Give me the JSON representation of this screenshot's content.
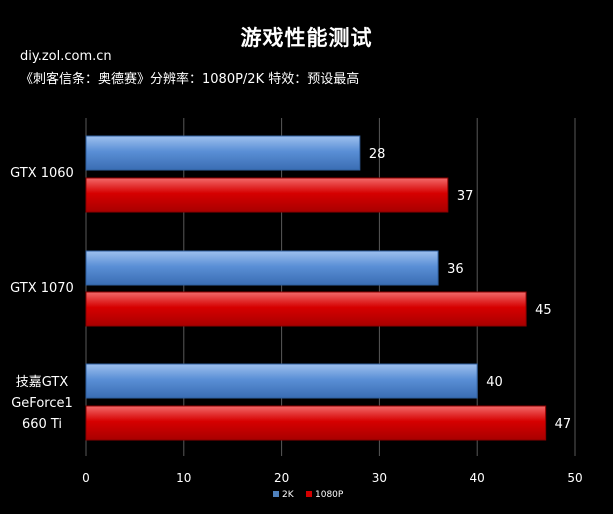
{
  "header": {
    "title": "游戏性能测试",
    "source": "diy.zol.com.cn",
    "settings": "《刺客信条：奥德赛》分辨率：1080P/2K 特效：预设最高"
  },
  "colors": {
    "background": "#000000",
    "series_2k": "#4f81bd",
    "series_1080p": "#d20000",
    "text": "#ffffff",
    "grid": "#595959"
  },
  "chart_data": {
    "type": "bar",
    "orientation": "horizontal",
    "title": "游戏性能测试",
    "categories": [
      [
        "GTX 1060"
      ],
      [
        "GTX 1070"
      ],
      [
        "技嘉GTX",
        "GeForce1",
        "660 Ti"
      ]
    ],
    "series": [
      {
        "name": "2K",
        "values": [
          28,
          36,
          40
        ]
      },
      {
        "name": "1080P",
        "values": [
          37,
          45,
          47
        ]
      }
    ],
    "xlim": [
      0,
      50
    ],
    "xticks": [
      0,
      10,
      20,
      30,
      40,
      50
    ],
    "grid": true,
    "legend": "bottom"
  }
}
